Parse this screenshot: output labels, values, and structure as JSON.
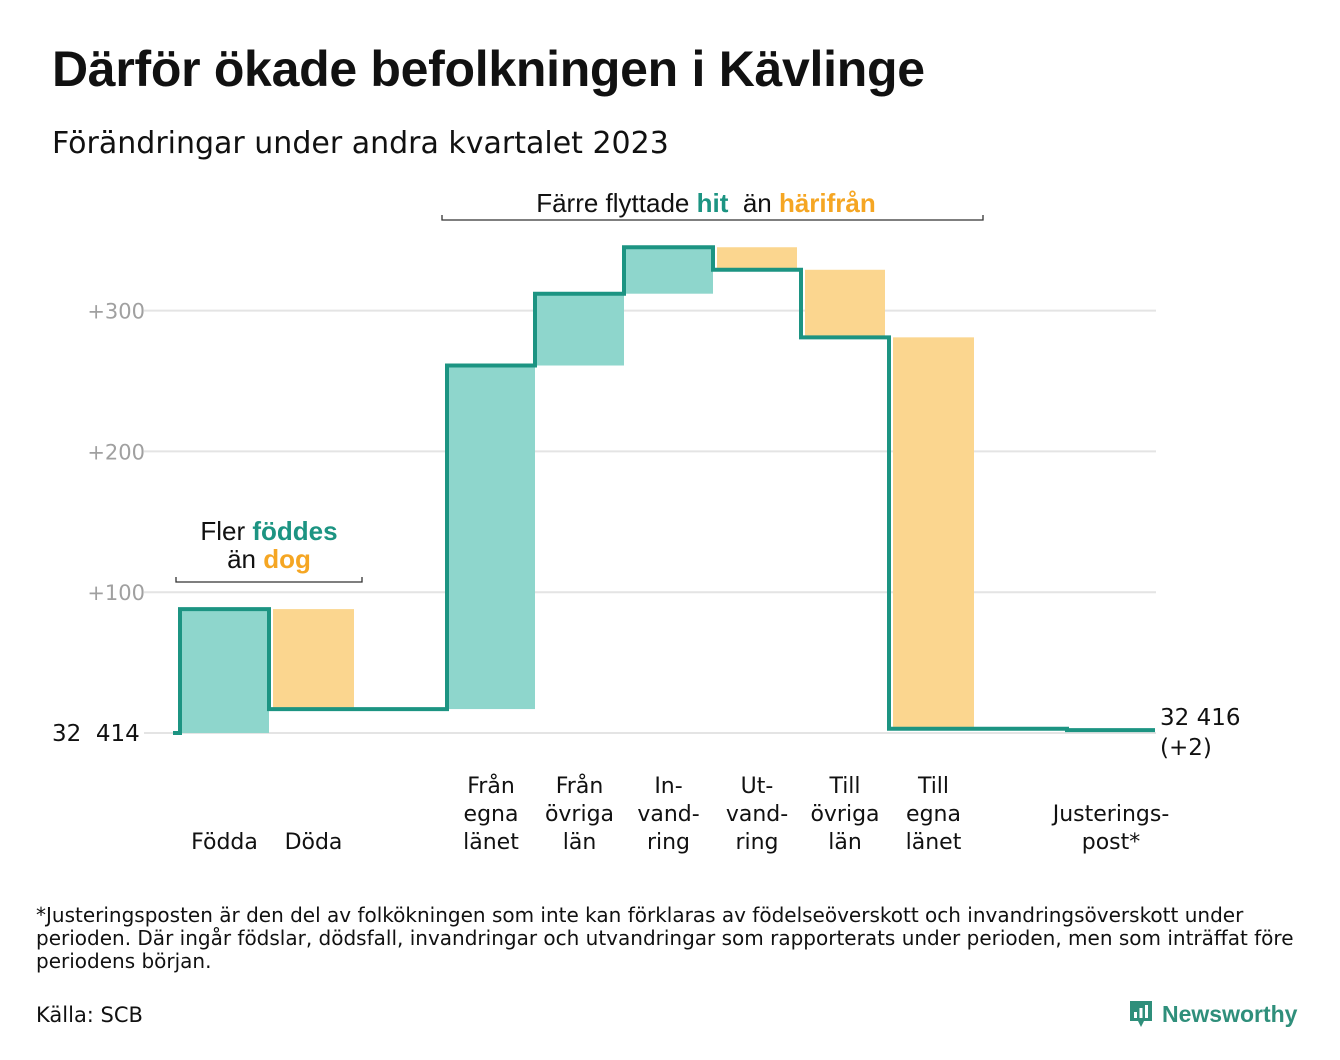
{
  "title": "Därför ökade befolkningen i Kävlinge",
  "subtitle": "Förändringar under andra kvartalet 2023",
  "chart_data": {
    "type": "waterfall",
    "base_label": "32  414",
    "end_label_lines": [
      "32 416",
      "(+2)"
    ],
    "yticks": [
      {
        "value": 100,
        "label": "+100"
      },
      {
        "value": 200,
        "label": "+200"
      },
      {
        "value": 300,
        "label": "+300"
      }
    ],
    "grid": true,
    "ylim": [
      0,
      350
    ],
    "steps": [
      {
        "label_lines": [
          "Födda"
        ],
        "start": 0,
        "end": 88,
        "kind": "in"
      },
      {
        "label_lines": [
          "Döda"
        ],
        "start": 88,
        "end": 17,
        "kind": "out"
      },
      {
        "label_lines": [
          "Från",
          "egna",
          "länet"
        ],
        "start": 17,
        "end": 261,
        "kind": "in"
      },
      {
        "label_lines": [
          "Från",
          "övriga",
          "län"
        ],
        "start": 261,
        "end": 312,
        "kind": "in"
      },
      {
        "label_lines": [
          "In-",
          "vand-",
          "ring"
        ],
        "start": 312,
        "end": 345,
        "kind": "in"
      },
      {
        "label_lines": [
          "Ut-",
          "vand-",
          "ring"
        ],
        "start": 345,
        "end": 329,
        "kind": "out"
      },
      {
        "label_lines": [
          "Till",
          "övriga",
          "län"
        ],
        "start": 329,
        "end": 281,
        "kind": "out"
      },
      {
        "label_lines": [
          "Till",
          "egna",
          "länet"
        ],
        "start": 281,
        "end": 3,
        "kind": "out"
      },
      {
        "label_lines": [
          "Justerings-",
          "post*"
        ],
        "start": 3,
        "end": 2,
        "kind": "out"
      }
    ],
    "annotations": [
      {
        "id": "births",
        "lines": [
          [
            {
              "text": "Fler ",
              "style": "plain"
            },
            {
              "text": "föddes",
              "style": "in"
            }
          ],
          [
            {
              "text": "än ",
              "style": "plain"
            },
            {
              "text": "dog",
              "style": "out"
            }
          ]
        ]
      },
      {
        "id": "moves",
        "lines": [
          [
            {
              "text": "Färre flyttade ",
              "style": "plain"
            },
            {
              "text": "hit",
              "style": "in"
            },
            {
              "text": "  än ",
              "style": "plain"
            },
            {
              "text": "härifrån",
              "style": "out"
            }
          ]
        ]
      }
    ],
    "colors": {
      "in_fill": "#8ed6cc",
      "out_fill": "#fbd68f",
      "line": "#1c9482",
      "in_text": "#1c9482",
      "out_text": "#f5a623",
      "grid": "#e4e4e4",
      "tick_text": "#a0a0a0"
    }
  },
  "footnote": "*Justeringsposten är den del av folkökningen som inte kan förklaras av födelseöverskott och invandringsöverskott under perioden. Där ingår födslar, dödsfall, invandringar och utvandringar som rapporterats under perioden, men som inträffat före periodens början.",
  "source": "Källa: SCB",
  "brand": {
    "name": "Newsworthy",
    "icon": "newsworthy-logo-icon",
    "color": "#2f8f7b"
  }
}
